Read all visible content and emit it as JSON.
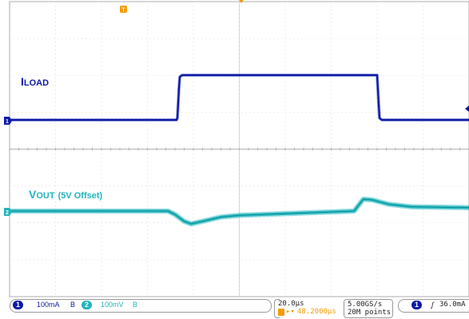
{
  "chart_data": {
    "type": "line",
    "xlim": [
      -100,
      100
    ],
    "x_unit": "µs",
    "grid": true,
    "series": [
      {
        "name": "ILOAD",
        "color": "#0d1aa6",
        "x": [
          -100,
          -27,
          -26,
          -25,
          60,
          61,
          62,
          100
        ],
        "values": [
          0,
          0,
          0.21,
          0.22,
          0.22,
          0.01,
          0,
          0
        ]
      },
      {
        "name": "VOUT (5V Offset)",
        "color": "#22b4bc",
        "x": [
          -100,
          -31,
          -28,
          -24,
          -21,
          -16,
          -8,
          0,
          20,
          50,
          54,
          58,
          65,
          75,
          100
        ],
        "values": [
          0,
          0,
          -0.02,
          -0.06,
          -0.075,
          -0.06,
          -0.035,
          -0.025,
          -0.015,
          0,
          0.07,
          0.065,
          0.04,
          0.025,
          0.02
        ]
      }
    ],
    "annotations": [
      {
        "text_main": "I",
        "text_sub": "LOAD"
      },
      {
        "text_main": "V",
        "text_sub": "OUT",
        "text_extra": "(5V Offset)"
      }
    ],
    "status": {
      "ch1_num": "1",
      "ch1_scale": "100mA",
      "ch1_bw": "B",
      "ch2_num": "2",
      "ch2_scale": "100mV",
      "ch2_bw": "B",
      "timebase": "20.0µs",
      "delay": "48.2000µs",
      "sample_rate": "5.00GS/s",
      "record_length": "20M points",
      "trigger_channel": "1",
      "trigger_level": "36.0mA"
    },
    "markers": {
      "trigger_position": "T",
      "ch1_marker": "1",
      "ch2_marker": "2"
    }
  },
  "colors": {
    "ch1": "#0d1aa6",
    "ch2": "#22b4bc",
    "trigger": "#f59a00",
    "grid": "#c8c8c8"
  }
}
